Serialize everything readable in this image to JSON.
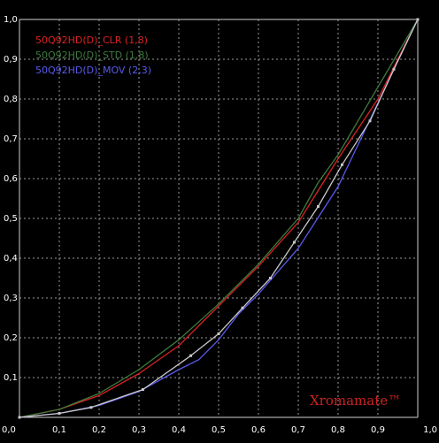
{
  "chart_data": {
    "type": "line",
    "xlim": [
      0,
      1
    ],
    "ylim": [
      0,
      1
    ],
    "grid": true,
    "legend_position": "top-left",
    "x_ticks": [
      "0,0",
      "0,1",
      "0,2",
      "0,3",
      "0,4",
      "0,5",
      "0,6",
      "0,7",
      "0,8",
      "0,9",
      "1,0"
    ],
    "y_ticks": [
      "0,1",
      "0,2",
      "0,3",
      "0,4",
      "0,5",
      "0,6",
      "0,7",
      "0,8",
      "0,9",
      "1,0"
    ],
    "tick_values": [
      0,
      0.1,
      0.2,
      0.3,
      0.4,
      0.5,
      0.6,
      0.7,
      0.8,
      0.9,
      1.0
    ],
    "series": [
      {
        "name": "50Q92HD(D)_CLR (1,8)",
        "color": "#dd2222",
        "points": [
          [
            0,
            0
          ],
          [
            0.1,
            0.02
          ],
          [
            0.2,
            0.055
          ],
          [
            0.3,
            0.11
          ],
          [
            0.4,
            0.18
          ],
          [
            0.5,
            0.28
          ],
          [
            0.6,
            0.38
          ],
          [
            0.7,
            0.49
          ],
          [
            0.75,
            0.57
          ],
          [
            0.8,
            0.65
          ],
          [
            0.9,
            0.8
          ],
          [
            1.0,
            1.0
          ]
        ]
      },
      {
        "name": "50Q92HD(D)_STD (1,8)",
        "color": "#3d7a3d",
        "points": [
          [
            0,
            0
          ],
          [
            0.1,
            0.02
          ],
          [
            0.2,
            0.06
          ],
          [
            0.3,
            0.12
          ],
          [
            0.4,
            0.195
          ],
          [
            0.5,
            0.285
          ],
          [
            0.6,
            0.385
          ],
          [
            0.7,
            0.5
          ],
          [
            0.75,
            0.59
          ],
          [
            0.8,
            0.66
          ],
          [
            0.9,
            0.83
          ],
          [
            1.0,
            1.0
          ]
        ]
      },
      {
        "name": "50Q92HD(D)_MOV (2,3)",
        "color": "#5a5aee",
        "points": [
          [
            0,
            0
          ],
          [
            0.1,
            0.01
          ],
          [
            0.2,
            0.03
          ],
          [
            0.3,
            0.065
          ],
          [
            0.4,
            0.12
          ],
          [
            0.45,
            0.145
          ],
          [
            0.5,
            0.195
          ],
          [
            0.55,
            0.26
          ],
          [
            0.6,
            0.31
          ],
          [
            0.7,
            0.425
          ],
          [
            0.8,
            0.58
          ],
          [
            0.9,
            0.79
          ],
          [
            1.0,
            1.0
          ]
        ]
      },
      {
        "name": "",
        "color": "#c8c8c8",
        "markers": true,
        "points": [
          [
            0,
            0
          ],
          [
            0.1,
            0.01
          ],
          [
            0.18,
            0.025
          ],
          [
            0.31,
            0.07
          ],
          [
            0.43,
            0.155
          ],
          [
            0.5,
            0.21
          ],
          [
            0.56,
            0.275
          ],
          [
            0.63,
            0.35
          ],
          [
            0.69,
            0.44
          ],
          [
            0.75,
            0.53
          ],
          [
            0.81,
            0.635
          ],
          [
            0.88,
            0.745
          ],
          [
            0.94,
            0.875
          ],
          [
            1.0,
            1.0
          ]
        ]
      }
    ],
    "watermark": "Xromamate™",
    "watermark_color": "#cc2222"
  }
}
